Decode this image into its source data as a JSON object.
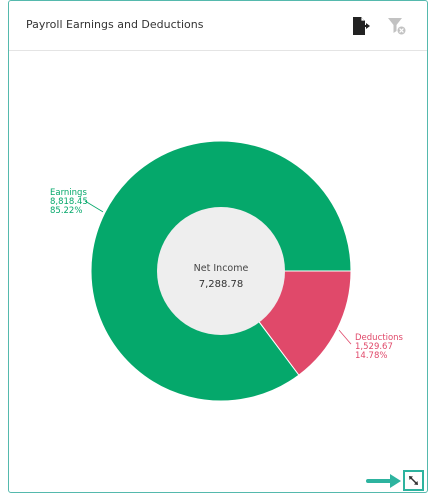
{
  "widget": {
    "title": "Payroll Earnings and Deductions",
    "export_icon": "export-icon",
    "filter_icon": "filter-off-icon",
    "resize_icon": "resize-icon"
  },
  "chart_data": {
    "type": "pie",
    "donut": true,
    "start_angle_deg": 0,
    "center_title": "Net Income",
    "center_value": "7,288.78",
    "slices": [
      {
        "name": "Deductions",
        "value": 1529.67,
        "value_label": "1,529.67",
        "percent_label": "14.78%",
        "color": "#e0496a"
      },
      {
        "name": "Earnings",
        "value": 8818.45,
        "value_label": "8,818.45",
        "percent_label": "85.22%",
        "color": "#05a86b"
      }
    ]
  },
  "colors": {
    "accent": "#2db39f",
    "inner_circle": "#eeeeee"
  }
}
